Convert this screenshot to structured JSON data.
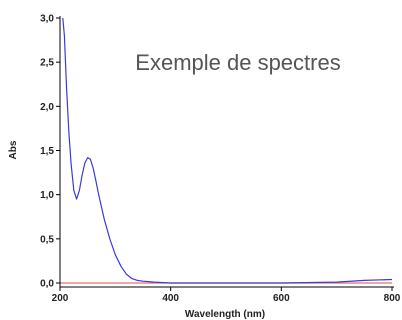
{
  "overlay_title": "Exemple de spectres",
  "chart_data": {
    "type": "line",
    "title": "",
    "xlabel": "Wavelength (nm)",
    "ylabel": "Abs",
    "xlim": [
      200,
      800
    ],
    "ylim": [
      0,
      3.0
    ],
    "xticks": [
      200,
      400,
      600,
      800
    ],
    "xtick_labels": [
      "200",
      "400",
      "600",
      "800"
    ],
    "yticks": [
      0,
      0.5,
      1.0,
      1.5,
      2.0,
      2.5,
      3.0
    ],
    "ytick_labels": [
      "0,0",
      "0,5",
      "1,0",
      "1,5",
      "2,0",
      "2,5",
      "3,0"
    ],
    "grid": false,
    "series": [
      {
        "color": "#3a3adc",
        "x": [
          205,
          208,
          212,
          216,
          220,
          225,
          230,
          235,
          240,
          245,
          250,
          255,
          260,
          265,
          270,
          280,
          290,
          300,
          310,
          320,
          330,
          340,
          350,
          370,
          400,
          500,
          600,
          700,
          750,
          800
        ],
        "y": [
          3.0,
          2.8,
          2.2,
          1.7,
          1.35,
          1.05,
          0.95,
          1.05,
          1.22,
          1.36,
          1.42,
          1.4,
          1.3,
          1.15,
          1.0,
          0.72,
          0.5,
          0.32,
          0.19,
          0.1,
          0.05,
          0.03,
          0.02,
          0.01,
          0.0,
          0.0,
          0.0,
          0.01,
          0.03,
          0.04
        ]
      },
      {
        "color": "#e87070",
        "x": [
          200,
          800
        ],
        "y": [
          0.0,
          0.0
        ]
      }
    ]
  }
}
